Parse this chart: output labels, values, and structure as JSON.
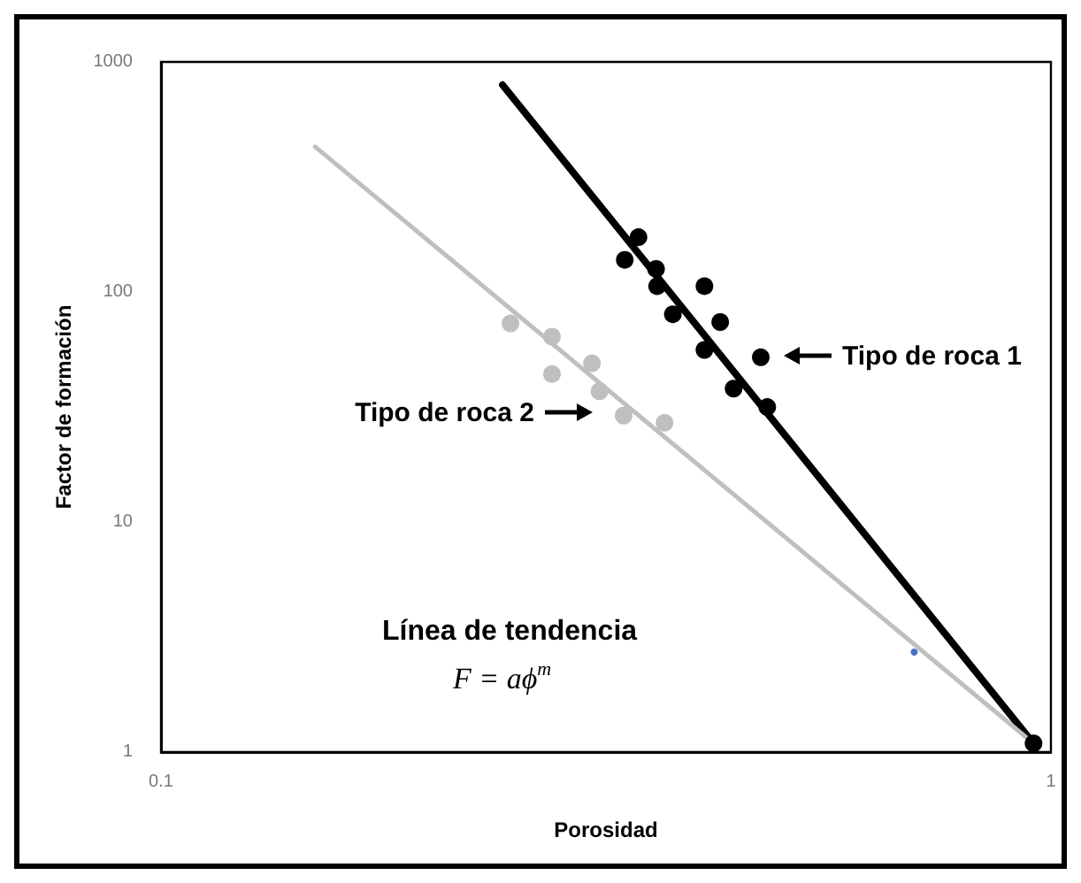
{
  "chart_data": {
    "type": "scatter",
    "xlabel": "Porosidad",
    "ylabel": "Factor de formación",
    "log": "xy",
    "xlim": [
      0.1,
      1
    ],
    "ylim": [
      1,
      1000
    ],
    "xticks": [
      0.1,
      1
    ],
    "yticks": [
      1,
      10,
      100,
      1000
    ],
    "grid": false,
    "marker": "circle",
    "series": [
      {
        "type": "line",
        "color": "#000000",
        "x": [
          0.242,
          0.956
        ],
        "values": [
          795,
          1.09
        ],
        "marker": "none"
      },
      {
        "type": "line",
        "color": "#bfbfbf",
        "x": [
          0.149,
          0.956
        ],
        "values": [
          428,
          1.09
        ],
        "marker": "none"
      },
      {
        "color": "#000000",
        "x": [
          0.332,
          0.344,
          0.36,
          0.361,
          0.376,
          0.408,
          0.408,
          0.425,
          0.44,
          0.472,
          0.48,
          0.956
        ],
        "values": [
          138,
          173,
          126,
          106,
          80,
          106,
          56,
          74,
          38,
          52,
          31.6,
          1.09
        ]
      },
      {
        "color": "#bfbfbf",
        "x": [
          0.247,
          0.275,
          0.275,
          0.305,
          0.311,
          0.331,
          0.368
        ],
        "values": [
          73,
          64,
          44,
          49,
          37,
          29,
          27
        ]
      },
      {
        "color": "#4472c4",
        "x": [
          0.702
        ],
        "values": [
          2.72
        ]
      }
    ],
    "annotations": [
      "Tipo de roca 1",
      "Tipo de roca 2",
      "Línea de tendencia",
      "F = aϕ$^{m}$"
    ]
  }
}
